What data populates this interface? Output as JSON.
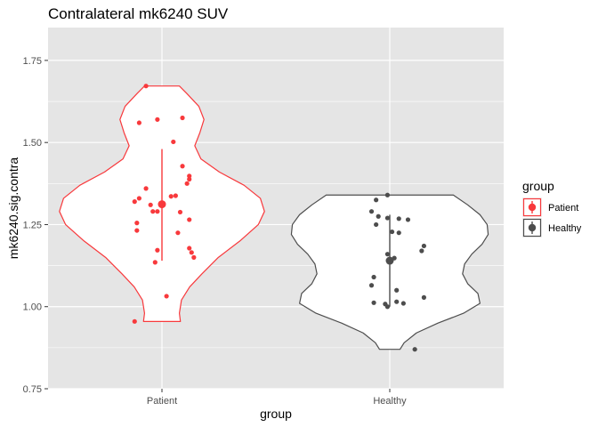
{
  "chart_data": {
    "type": "violin",
    "title": "Contralateral mk6240 SUV",
    "xlabel": "group",
    "ylabel": "mk6240.sig.contra",
    "categories": [
      "Patient",
      "Healthy"
    ],
    "ylim": [
      0.75,
      1.85
    ],
    "yticks": [
      0.75,
      1.0,
      1.25,
      1.5,
      1.75
    ],
    "ytick_labels": [
      "0.75",
      "1.00",
      "1.25",
      "1.50",
      "1.75"
    ],
    "grid": true,
    "legend": {
      "title": "group",
      "position": "right",
      "entries": [
        "Patient",
        "Healthy"
      ]
    },
    "colors": {
      "Patient": "#F8393C",
      "Healthy": "#4D4D4D",
      "panel_bg": "#E5E5E5",
      "grid": "#FFFFFF"
    },
    "series": [
      {
        "name": "Patient",
        "color": "#F8393C",
        "range": [
          0.955,
          1.672
        ],
        "mean": 1.312,
        "errorbar": [
          1.14,
          1.48
        ],
        "violin_profile": [
          {
            "y": 0.955,
            "w": 0.18
          },
          {
            "y": 0.98,
            "w": 0.17
          },
          {
            "y": 1.02,
            "w": 0.19
          },
          {
            "y": 1.06,
            "w": 0.27
          },
          {
            "y": 1.1,
            "w": 0.39
          },
          {
            "y": 1.15,
            "w": 0.55
          },
          {
            "y": 1.2,
            "w": 0.76
          },
          {
            "y": 1.25,
            "w": 0.94
          },
          {
            "y": 1.29,
            "w": 1.0
          },
          {
            "y": 1.33,
            "w": 0.96
          },
          {
            "y": 1.37,
            "w": 0.8
          },
          {
            "y": 1.41,
            "w": 0.56
          },
          {
            "y": 1.45,
            "w": 0.38
          },
          {
            "y": 1.49,
            "w": 0.32
          },
          {
            "y": 1.53,
            "w": 0.37
          },
          {
            "y": 1.57,
            "w": 0.41
          },
          {
            "y": 1.61,
            "w": 0.36
          },
          {
            "y": 1.65,
            "w": 0.24
          },
          {
            "y": 1.672,
            "w": 0.17
          }
        ],
        "points": [
          {
            "y": 1.672,
            "dx": -0.07
          },
          {
            "y": 1.575,
            "dx": 0.09
          },
          {
            "y": 1.57,
            "dx": -0.02
          },
          {
            "y": 1.56,
            "dx": -0.1
          },
          {
            "y": 1.502,
            "dx": 0.05
          },
          {
            "y": 1.428,
            "dx": 0.09
          },
          {
            "y": 1.398,
            "dx": 0.12
          },
          {
            "y": 1.388,
            "dx": 0.12
          },
          {
            "y": 1.375,
            "dx": 0.11
          },
          {
            "y": 1.36,
            "dx": -0.07
          },
          {
            "y": 1.338,
            "dx": 0.06
          },
          {
            "y": 1.336,
            "dx": 0.04
          },
          {
            "y": 1.33,
            "dx": -0.1
          },
          {
            "y": 1.32,
            "dx": -0.12
          },
          {
            "y": 1.31,
            "dx": -0.05
          },
          {
            "y": 1.29,
            "dx": -0.02
          },
          {
            "y": 1.29,
            "dx": -0.04
          },
          {
            "y": 1.288,
            "dx": 0.08
          },
          {
            "y": 1.265,
            "dx": 0.12
          },
          {
            "y": 1.255,
            "dx": -0.11
          },
          {
            "y": 1.232,
            "dx": -0.11
          },
          {
            "y": 1.225,
            "dx": 0.07
          },
          {
            "y": 1.178,
            "dx": 0.12
          },
          {
            "y": 1.172,
            "dx": -0.02
          },
          {
            "y": 1.165,
            "dx": 0.13
          },
          {
            "y": 1.15,
            "dx": 0.14
          },
          {
            "y": 1.135,
            "dx": -0.03
          },
          {
            "y": 1.032,
            "dx": 0.02
          },
          {
            "y": 0.955,
            "dx": -0.12
          }
        ]
      },
      {
        "name": "Healthy",
        "color": "#4D4D4D",
        "range": [
          0.87,
          1.34
        ],
        "mean": 1.14,
        "errorbar": [
          1.0,
          1.28
        ],
        "violin_profile": [
          {
            "y": 0.87,
            "w": 0.1
          },
          {
            "y": 0.89,
            "w": 0.14
          },
          {
            "y": 0.92,
            "w": 0.26
          },
          {
            "y": 0.95,
            "w": 0.47
          },
          {
            "y": 0.98,
            "w": 0.72
          },
          {
            "y": 1.01,
            "w": 0.88
          },
          {
            "y": 1.04,
            "w": 0.86
          },
          {
            "y": 1.07,
            "w": 0.76
          },
          {
            "y": 1.1,
            "w": 0.71
          },
          {
            "y": 1.13,
            "w": 0.73
          },
          {
            "y": 1.16,
            "w": 0.8
          },
          {
            "y": 1.19,
            "w": 0.9
          },
          {
            "y": 1.22,
            "w": 0.96
          },
          {
            "y": 1.25,
            "w": 0.95
          },
          {
            "y": 1.28,
            "w": 0.88
          },
          {
            "y": 1.31,
            "w": 0.76
          },
          {
            "y": 1.34,
            "w": 0.62
          }
        ],
        "points": [
          {
            "y": 1.34,
            "dx": -0.01
          },
          {
            "y": 1.325,
            "dx": -0.06
          },
          {
            "y": 1.29,
            "dx": -0.08
          },
          {
            "y": 1.275,
            "dx": -0.05
          },
          {
            "y": 1.27,
            "dx": -0.01
          },
          {
            "y": 1.268,
            "dx": 0.04
          },
          {
            "y": 1.265,
            "dx": 0.08
          },
          {
            "y": 1.25,
            "dx": -0.06
          },
          {
            "y": 1.228,
            "dx": 0.01
          },
          {
            "y": 1.225,
            "dx": 0.04
          },
          {
            "y": 1.185,
            "dx": 0.15
          },
          {
            "y": 1.17,
            "dx": 0.14
          },
          {
            "y": 1.16,
            "dx": -0.01
          },
          {
            "y": 1.148,
            "dx": 0.02
          },
          {
            "y": 1.14,
            "dx": 0.0
          },
          {
            "y": 1.09,
            "dx": -0.07
          },
          {
            "y": 1.065,
            "dx": -0.08
          },
          {
            "y": 1.05,
            "dx": 0.03
          },
          {
            "y": 1.028,
            "dx": 0.15
          },
          {
            "y": 1.015,
            "dx": 0.03
          },
          {
            "y": 1.012,
            "dx": -0.07
          },
          {
            "y": 1.01,
            "dx": 0.06
          },
          {
            "y": 1.008,
            "dx": -0.02
          },
          {
            "y": 1.0,
            "dx": -0.01
          },
          {
            "y": 0.87,
            "dx": 0.11
          }
        ]
      }
    ]
  }
}
